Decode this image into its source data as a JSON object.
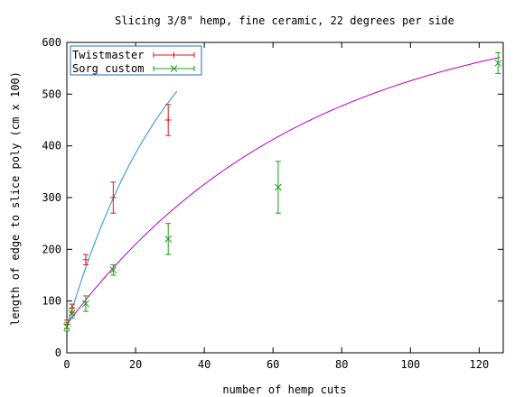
{
  "chart_data": {
    "type": "scatter",
    "title": "Slicing 3/8\" hemp, fine ceramic, 22 degrees per side",
    "xlabel": "number of hemp cuts",
    "ylabel": "length of edge to slice poly (cm x 100)",
    "xlim": [
      0,
      127
    ],
    "ylim": [
      0,
      600
    ],
    "x_ticks": [
      "0",
      "20",
      "40",
      "60",
      "80",
      "100",
      "120"
    ],
    "y_ticks": [
      "0",
      "100",
      "200",
      "300",
      "400",
      "500",
      "600"
    ],
    "grid": false,
    "legend_position": "top-left",
    "series": [
      {
        "name": "Twistmaster",
        "color": "#e3171f",
        "marker": "plus",
        "fit_color": "#2a8fd6",
        "points": [
          {
            "x": 0,
            "y": 55,
            "err": 8
          },
          {
            "x": 1.5,
            "y": 86,
            "err": 8
          },
          {
            "x": 5.5,
            "y": 180,
            "err": 10
          },
          {
            "x": 13.5,
            "y": 300,
            "err": 30
          },
          {
            "x": 29.5,
            "y": 450,
            "err": 30
          }
        ],
        "fit": {
          "model": "exp_saturation",
          "a": 710,
          "b": 0.032,
          "c": 50,
          "x_range": [
            0,
            32
          ]
        }
      },
      {
        "name": "Sorg custom",
        "color": "#1c9e1c",
        "marker": "x",
        "fit_color": "#b400c8",
        "points": [
          {
            "x": 0,
            "y": 50,
            "err": 8
          },
          {
            "x": 1.5,
            "y": 77,
            "err": 10
          },
          {
            "x": 5.5,
            "y": 95,
            "err": 15
          },
          {
            "x": 13.5,
            "y": 160,
            "err": 10
          },
          {
            "x": 29.5,
            "y": 220,
            "err": 30
          },
          {
            "x": 61.5,
            "y": 320,
            "err": 50
          },
          {
            "x": 125.5,
            "y": 560,
            "err": 20
          }
        ],
        "fit": {
          "model": "exp_saturation",
          "a": 615,
          "b": 0.0145,
          "c": 55,
          "x_range": [
            0,
            126
          ]
        }
      }
    ]
  }
}
